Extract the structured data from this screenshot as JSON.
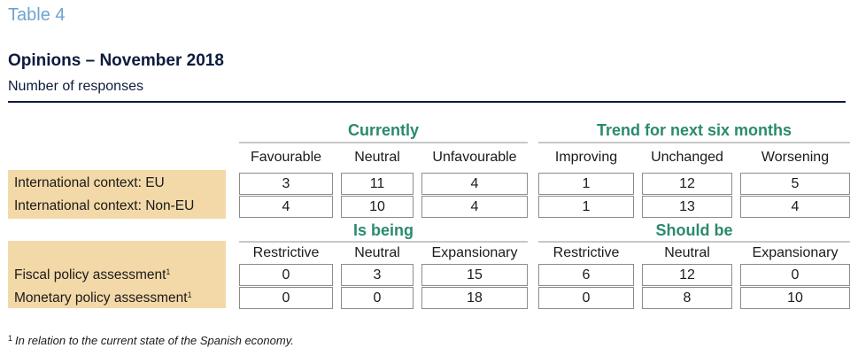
{
  "header": {
    "table_label": "Table 4",
    "title": "Opinions – November 2018",
    "subtitle": "Number of responses"
  },
  "section1": {
    "group_left": "Currently",
    "group_right": "Trend for next six months",
    "columns": [
      "Favourable",
      "Neutral",
      "Unfavourable",
      "Improving",
      "Unchanged",
      "Worsening"
    ],
    "rows": [
      {
        "label": "International context: EU",
        "values": [
          "3",
          "11",
          "4",
          "1",
          "12",
          "5"
        ]
      },
      {
        "label": "International context: Non-EU",
        "values": [
          "4",
          "10",
          "4",
          "1",
          "13",
          "4"
        ]
      }
    ]
  },
  "section2": {
    "group_left": "Is being",
    "group_right": "Should be",
    "columns": [
      "Restrictive",
      "Neutral",
      "Expansionary",
      "Restrictive",
      "Neutral",
      "Expansionary"
    ],
    "rows": [
      {
        "label": "Fiscal policy assessment",
        "marker": "1",
        "values": [
          "0",
          "3",
          "15",
          "6",
          "12",
          "0"
        ]
      },
      {
        "label": "Monetary policy assessment",
        "marker": "1",
        "values": [
          "0",
          "0",
          "18",
          "0",
          "8",
          "10"
        ]
      }
    ]
  },
  "footnote": {
    "marker": "1",
    "text": "In relation to the current state of the Spanish economy."
  }
}
